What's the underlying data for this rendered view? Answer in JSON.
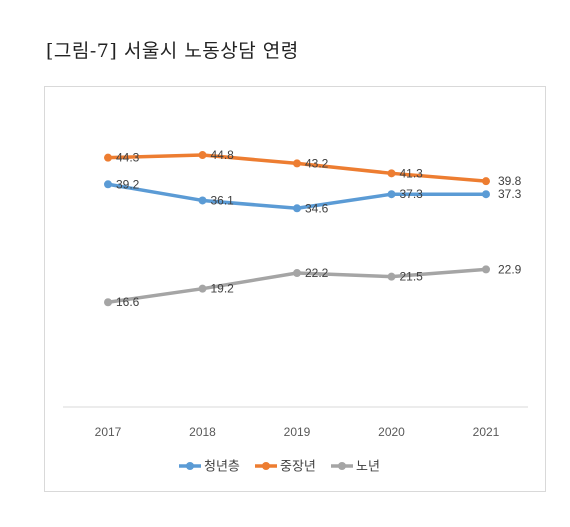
{
  "figure_title": "[그림-7] 서울시 노동상담 연령",
  "chart_data": {
    "type": "line",
    "title": "",
    "xlabel": "",
    "ylabel": "",
    "categories": [
      "2017",
      "2018",
      "2019",
      "2020",
      "2021"
    ],
    "ylim": [
      0,
      50
    ],
    "grid": false,
    "legend_position": "bottom",
    "series": [
      {
        "name": "청년층",
        "color": "#5b9bd5",
        "values": [
          39.2,
          36.1,
          34.6,
          37.3,
          37.3
        ]
      },
      {
        "name": "중장년",
        "color": "#ed7d31",
        "values": [
          44.3,
          44.8,
          43.2,
          41.3,
          39.8
        ]
      },
      {
        "name": "노년",
        "color": "#a5a5a5",
        "values": [
          16.6,
          19.2,
          22.2,
          21.5,
          22.9
        ]
      }
    ]
  }
}
